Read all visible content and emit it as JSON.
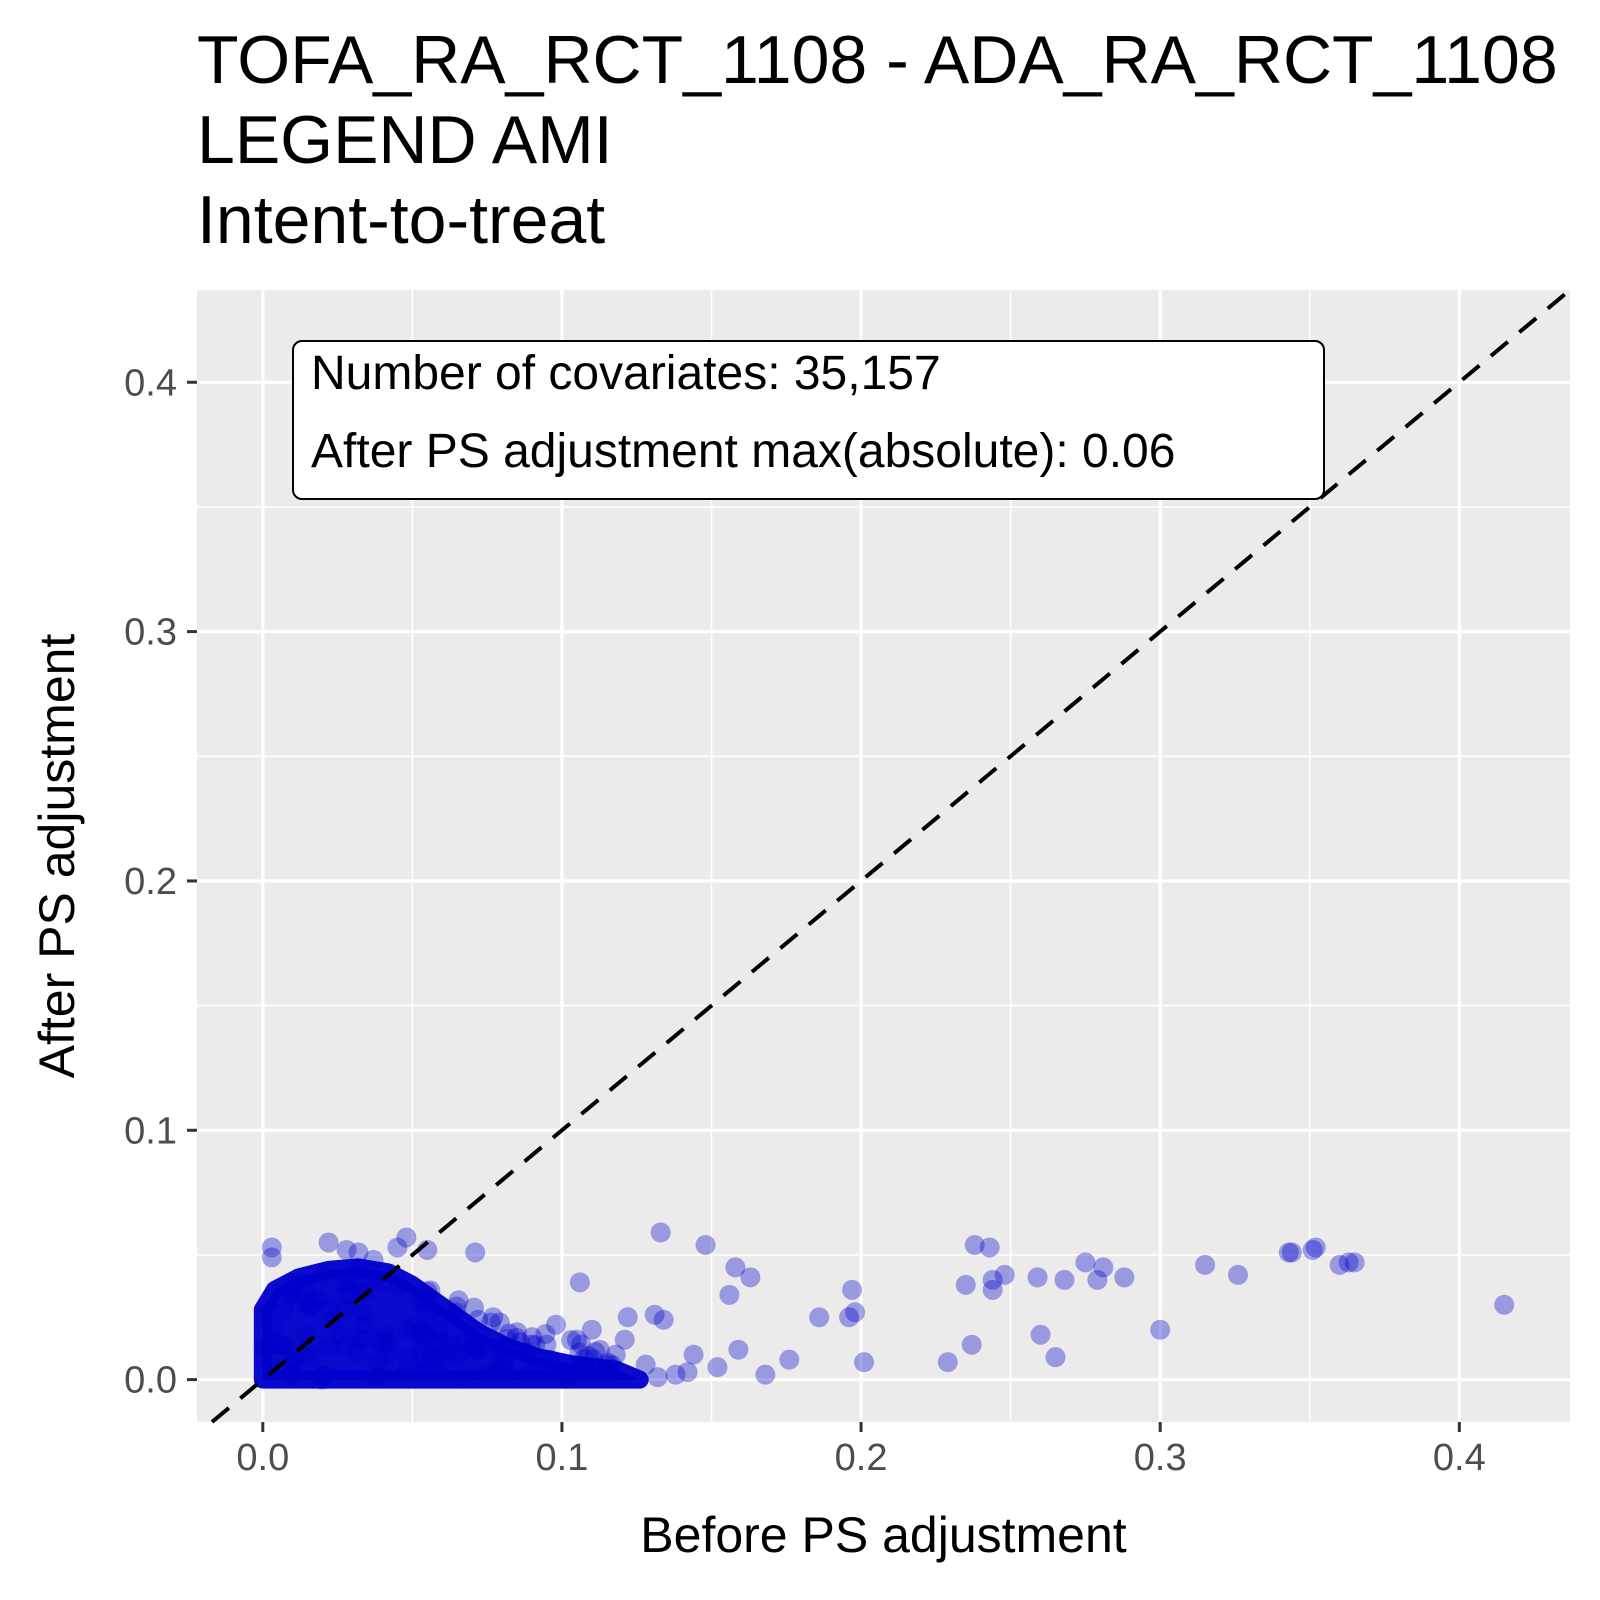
{
  "chart_data": {
    "type": "scatter",
    "title_lines": [
      "TOFA_RA_RCT_1108 - ADA_RA_RCT_1108",
      "LEGEND AMI",
      "Intent-to-treat"
    ],
    "xlabel": "Before PS adjustment",
    "ylabel": "After PS adjustment",
    "xlim": [
      -0.022,
      0.437
    ],
    "ylim": [
      -0.017,
      0.437
    ],
    "x_ticks": [
      0.0,
      0.1,
      0.2,
      0.3,
      0.4
    ],
    "y_ticks": [
      0.0,
      0.1,
      0.2,
      0.3,
      0.4
    ],
    "x_tick_labels": [
      "0.0",
      "0.1",
      "0.2",
      "0.3",
      "0.4"
    ],
    "y_tick_labels": [
      "0.0",
      "0.1",
      "0.2",
      "0.3",
      "0.4"
    ],
    "grid": true,
    "reference_line": {
      "type": "diagonal",
      "slope": 1,
      "intercept": 0,
      "style": "dashed"
    },
    "annotation": {
      "line1": "Number of covariates: 35,157",
      "line2": "After PS adjustment max(absolute): 0.06"
    },
    "colors": {
      "point": "#0000CC",
      "panel": "#EBEBEB",
      "grid": "#FFFFFF"
    },
    "dense_cluster": {
      "x_range": [
        0.0,
        0.1
      ],
      "y_range": [
        0.0,
        0.05
      ],
      "note": "thousands of overlapping points near the origin"
    },
    "points": [
      [
        0.003,
        0.053
      ],
      [
        0.003,
        0.049
      ],
      [
        0.022,
        0.055
      ],
      [
        0.028,
        0.052
      ],
      [
        0.032,
        0.051
      ],
      [
        0.048,
        0.057
      ],
      [
        0.045,
        0.053
      ],
      [
        0.055,
        0.052
      ],
      [
        0.071,
        0.051
      ],
      [
        0.037,
        0.048
      ],
      [
        0.133,
        0.059
      ],
      [
        0.148,
        0.054
      ],
      [
        0.158,
        0.045
      ],
      [
        0.163,
        0.041
      ],
      [
        0.156,
        0.034
      ],
      [
        0.106,
        0.039
      ],
      [
        0.077,
        0.025
      ],
      [
        0.072,
        0.024
      ],
      [
        0.085,
        0.019
      ],
      [
        0.098,
        0.022
      ],
      [
        0.11,
        0.02
      ],
      [
        0.122,
        0.025
      ],
      [
        0.131,
        0.026
      ],
      [
        0.134,
        0.024
      ],
      [
        0.105,
        0.016
      ],
      [
        0.121,
        0.016
      ],
      [
        0.118,
        0.01
      ],
      [
        0.128,
        0.006
      ],
      [
        0.132,
        0.001
      ],
      [
        0.138,
        0.002
      ],
      [
        0.142,
        0.003
      ],
      [
        0.144,
        0.01
      ],
      [
        0.152,
        0.005
      ],
      [
        0.159,
        0.012
      ],
      [
        0.168,
        0.002
      ],
      [
        0.176,
        0.008
      ],
      [
        0.186,
        0.025
      ],
      [
        0.196,
        0.025
      ],
      [
        0.198,
        0.027
      ],
      [
        0.197,
        0.036
      ],
      [
        0.201,
        0.007
      ],
      [
        0.229,
        0.007
      ],
      [
        0.235,
        0.038
      ],
      [
        0.237,
        0.014
      ],
      [
        0.238,
        0.054
      ],
      [
        0.243,
        0.053
      ],
      [
        0.244,
        0.04
      ],
      [
        0.244,
        0.036
      ],
      [
        0.248,
        0.042
      ],
      [
        0.259,
        0.041
      ],
      [
        0.26,
        0.018
      ],
      [
        0.265,
        0.009
      ],
      [
        0.268,
        0.04
      ],
      [
        0.275,
        0.047
      ],
      [
        0.279,
        0.04
      ],
      [
        0.281,
        0.045
      ],
      [
        0.288,
        0.041
      ],
      [
        0.3,
        0.02
      ],
      [
        0.315,
        0.046
      ],
      [
        0.326,
        0.042
      ],
      [
        0.343,
        0.051
      ],
      [
        0.344,
        0.051
      ],
      [
        0.351,
        0.052
      ],
      [
        0.352,
        0.053
      ],
      [
        0.36,
        0.046
      ],
      [
        0.363,
        0.047
      ],
      [
        0.365,
        0.047
      ],
      [
        0.415,
        0.03
      ]
    ]
  }
}
